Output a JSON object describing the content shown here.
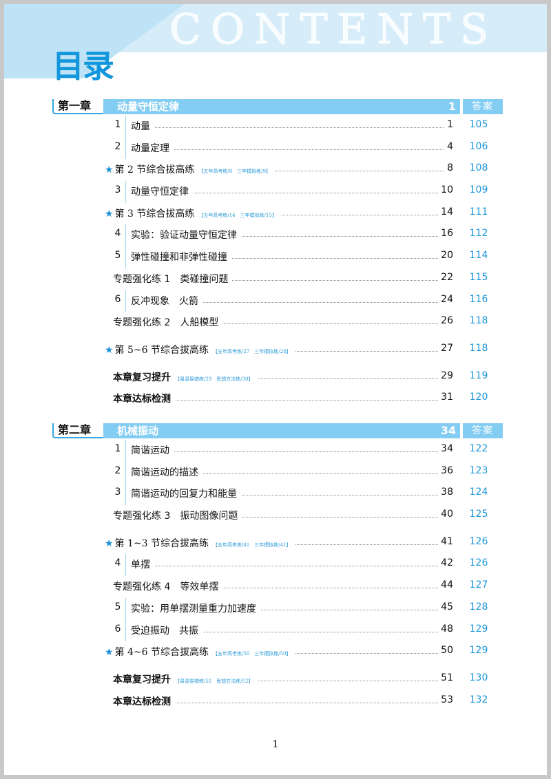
{
  "header": {
    "title": "目录",
    "watermark": "CONTENTS"
  },
  "chapters": [
    {
      "label": "第一章",
      "title": "动量守恒定律",
      "page": "1",
      "answer_label": "答案",
      "rows": [
        {
          "kind": "section",
          "num": "1",
          "title": "动量",
          "page": "1",
          "answer": "105"
        },
        {
          "kind": "section",
          "num": "2",
          "title": "动量定理",
          "page": "4",
          "answer": "106"
        },
        {
          "kind": "star",
          "title": "第 2 节综合拔高练",
          "note": "【五年高考练/8　三年模拟练/9】",
          "page": "8",
          "answer": "108"
        },
        {
          "kind": "section",
          "num": "3",
          "title": "动量守恒定律",
          "page": "10",
          "answer": "109"
        },
        {
          "kind": "star",
          "title": "第 3 节综合拔高练",
          "note": "【五年高考练/14　三年模拟练/15】",
          "page": "14",
          "answer": "111"
        },
        {
          "kind": "section",
          "num": "4",
          "title": "实验：验证动量守恒定律",
          "page": "16",
          "answer": "112"
        },
        {
          "kind": "section",
          "num": "5",
          "title": "弹性碰撞和非弹性碰撞",
          "page": "20",
          "answer": "114"
        },
        {
          "kind": "topic",
          "title": "专题强化练 1　类碰撞问题",
          "page": "22",
          "answer": "115"
        },
        {
          "kind": "section",
          "num": "6",
          "title": "反冲现象　火箭",
          "page": "24",
          "answer": "116"
        },
        {
          "kind": "topic",
          "title": "专题强化练 2　人船模型",
          "page": "26",
          "answer": "118"
        },
        {
          "kind": "star",
          "title": "第 5~6 节综合拔高练",
          "note": "【五年高考练/27　三年模拟练/28】",
          "page": "27",
          "answer": "118"
        },
        {
          "kind": "review",
          "title": "本章复习提升",
          "note": "【易混易错练/29　思想方法练/30】",
          "page": "29",
          "answer": "119"
        },
        {
          "kind": "review",
          "title": "本章达标检测",
          "page": "31",
          "answer": "120"
        }
      ]
    },
    {
      "label": "第二章",
      "title": "机械振动",
      "page": "34",
      "answer_label": "答案",
      "rows": [
        {
          "kind": "section",
          "num": "1",
          "title": "简谐运动",
          "page": "34",
          "answer": "122"
        },
        {
          "kind": "section",
          "num": "2",
          "title": "简谐运动的描述",
          "page": "36",
          "answer": "123"
        },
        {
          "kind": "section",
          "num": "3",
          "title": "简谐运动的回复力和能量",
          "page": "38",
          "answer": "124"
        },
        {
          "kind": "topic",
          "title": "专题强化练 3　振动图像问题",
          "page": "40",
          "answer": "125"
        },
        {
          "kind": "star",
          "title": "第 1~3 节综合拔高练",
          "note": "【五年高考练/41　三年模拟练/41】",
          "page": "41",
          "answer": "126"
        },
        {
          "kind": "section",
          "num": "4",
          "title": "单摆",
          "page": "42",
          "answer": "126"
        },
        {
          "kind": "topic",
          "title": "专题强化练 4　等效单摆",
          "page": "44",
          "answer": "127"
        },
        {
          "kind": "section",
          "num": "5",
          "title": "实验：用单摆测量重力加速度",
          "page": "45",
          "answer": "128"
        },
        {
          "kind": "section",
          "num": "6",
          "title": "受迫振动　共振",
          "page": "48",
          "answer": "129"
        },
        {
          "kind": "star",
          "title": "第 4~6 节综合拔高练",
          "note": "【五年高考练/50　三年模拟练/50】",
          "page": "50",
          "answer": "129"
        },
        {
          "kind": "review",
          "title": "本章复习提升",
          "note": "【易混易错练/51　思想方法练/52】",
          "page": "51",
          "answer": "130"
        },
        {
          "kind": "review",
          "title": "本章达标检测",
          "page": "53",
          "answer": "132"
        }
      ]
    }
  ],
  "footer": {
    "page_number": "1"
  }
}
